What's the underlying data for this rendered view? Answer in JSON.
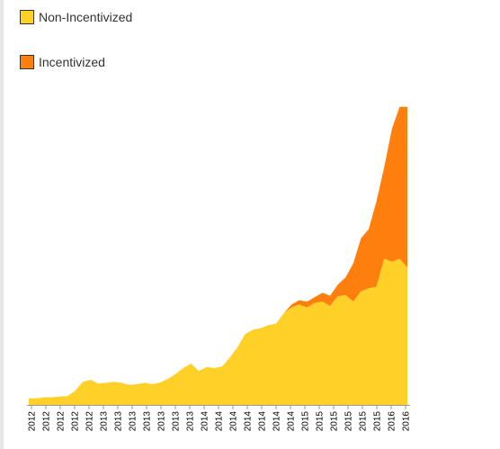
{
  "chart_data": {
    "type": "area",
    "stacked": true,
    "legend_placement": "top-left",
    "grid": false,
    "title": "",
    "xlabel": "",
    "ylabel": "",
    "x_tick_labels": [
      "2012",
      "2012",
      "2012",
      "2012",
      "2012",
      "2013",
      "2013",
      "2013",
      "2013",
      "2013",
      "2013",
      "2013",
      "2014",
      "2014",
      "2014",
      "2014",
      "2014",
      "2014",
      "2014",
      "2015",
      "2015",
      "2015",
      "2015",
      "2015",
      "2015",
      "2016",
      "2016"
    ],
    "ylim": [
      0,
      1000
    ],
    "series": [
      {
        "name": "Non-Incentivized",
        "color": "#FFD027",
        "values": [
          22,
          22,
          26,
          26,
          28,
          30,
          48,
          78,
          85,
          72,
          75,
          78,
          75,
          68,
          70,
          75,
          70,
          76,
          88,
          105,
          125,
          140,
          115,
          128,
          125,
          130,
          160,
          195,
          240,
          255,
          260,
          270,
          275,
          310,
          330,
          340,
          330,
          345,
          350,
          335,
          368,
          372,
          350,
          385,
          395,
          400,
          495,
          485,
          495,
          465
        ]
      },
      {
        "name": "Incentivized",
        "color": "#FF7F0E",
        "values": [
          0,
          0,
          0,
          0,
          0,
          0,
          0,
          0,
          0,
          0,
          0,
          0,
          0,
          0,
          0,
          0,
          0,
          0,
          0,
          0,
          0,
          0,
          0,
          0,
          0,
          0,
          0,
          0,
          0,
          0,
          0,
          0,
          0,
          0,
          10,
          15,
          20,
          20,
          30,
          35,
          40,
          60,
          130,
          180,
          200,
          290,
          310,
          450,
          515,
          545
        ]
      }
    ]
  }
}
